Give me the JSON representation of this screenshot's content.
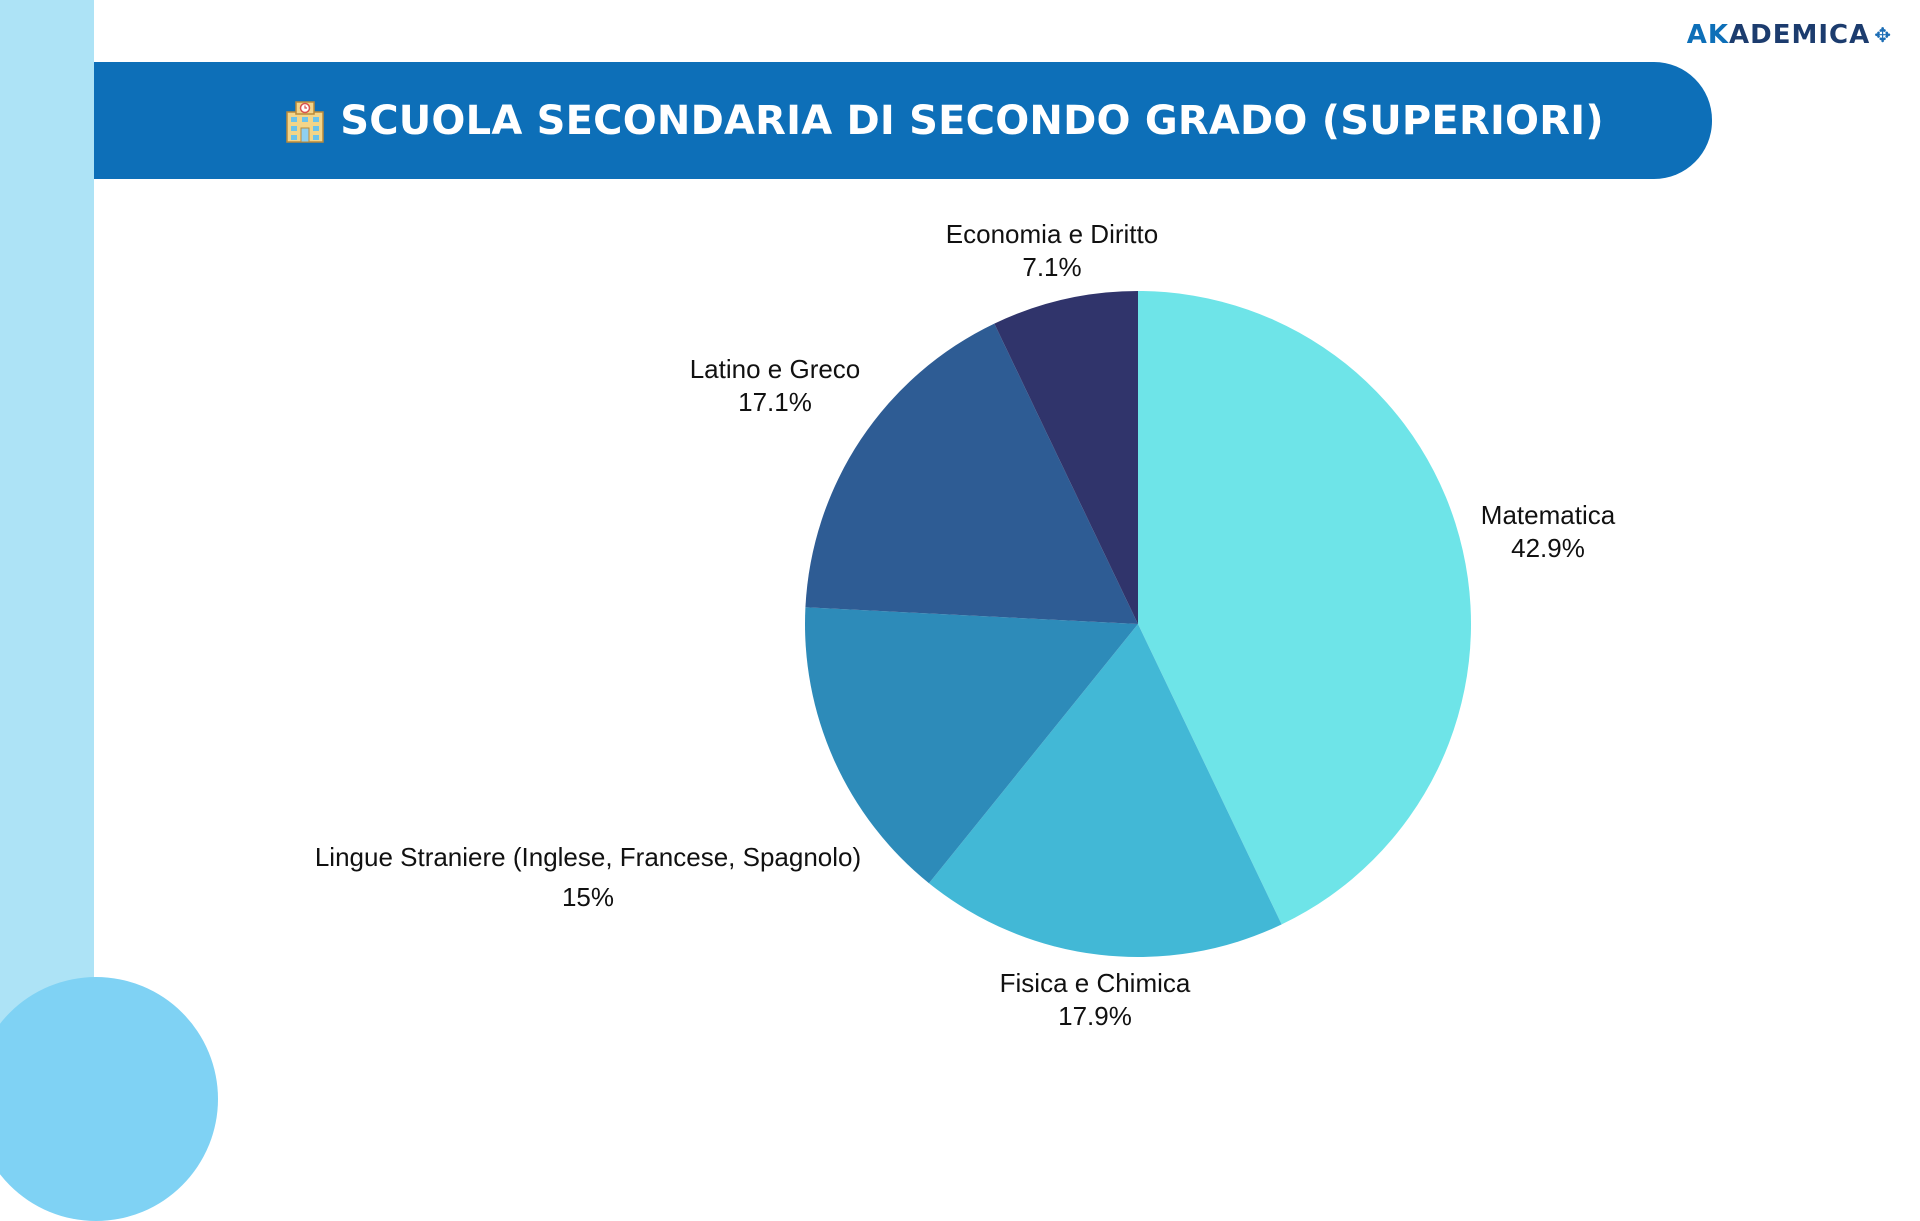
{
  "header": {
    "title": "SCUOLA SECONDARIA DI SECONDO GRADO (SUPERIORI)",
    "icon": "school-building-icon"
  },
  "logo": {
    "part_accent": "AK",
    "part_main": "ADEMICA",
    "mark": "✥"
  },
  "colors": {
    "title_bar": "#0d6fb8",
    "left_stripe": "#ade3f6",
    "deco_circle": "#7fd2f4"
  },
  "chart_data": {
    "type": "pie",
    "title": "",
    "categories": [
      "Matematica",
      "Fisica e Chimica",
      "Lingue Straniere (Inglese, Francese, Spagnolo)",
      "Latino e Greco",
      "Economia e Diritto"
    ],
    "values": [
      42.9,
      17.9,
      15,
      17.1,
      7.1
    ],
    "value_labels": [
      "42.9%",
      "17.9%",
      "15%",
      "17.1%",
      "7.1%"
    ],
    "colors": [
      "#6ee4e8",
      "#42b8d6",
      "#2d8bb9",
      "#2e5c94",
      "#30346b"
    ],
    "start_angle": "12 o'clock",
    "direction": "clockwise",
    "legend": "none"
  }
}
